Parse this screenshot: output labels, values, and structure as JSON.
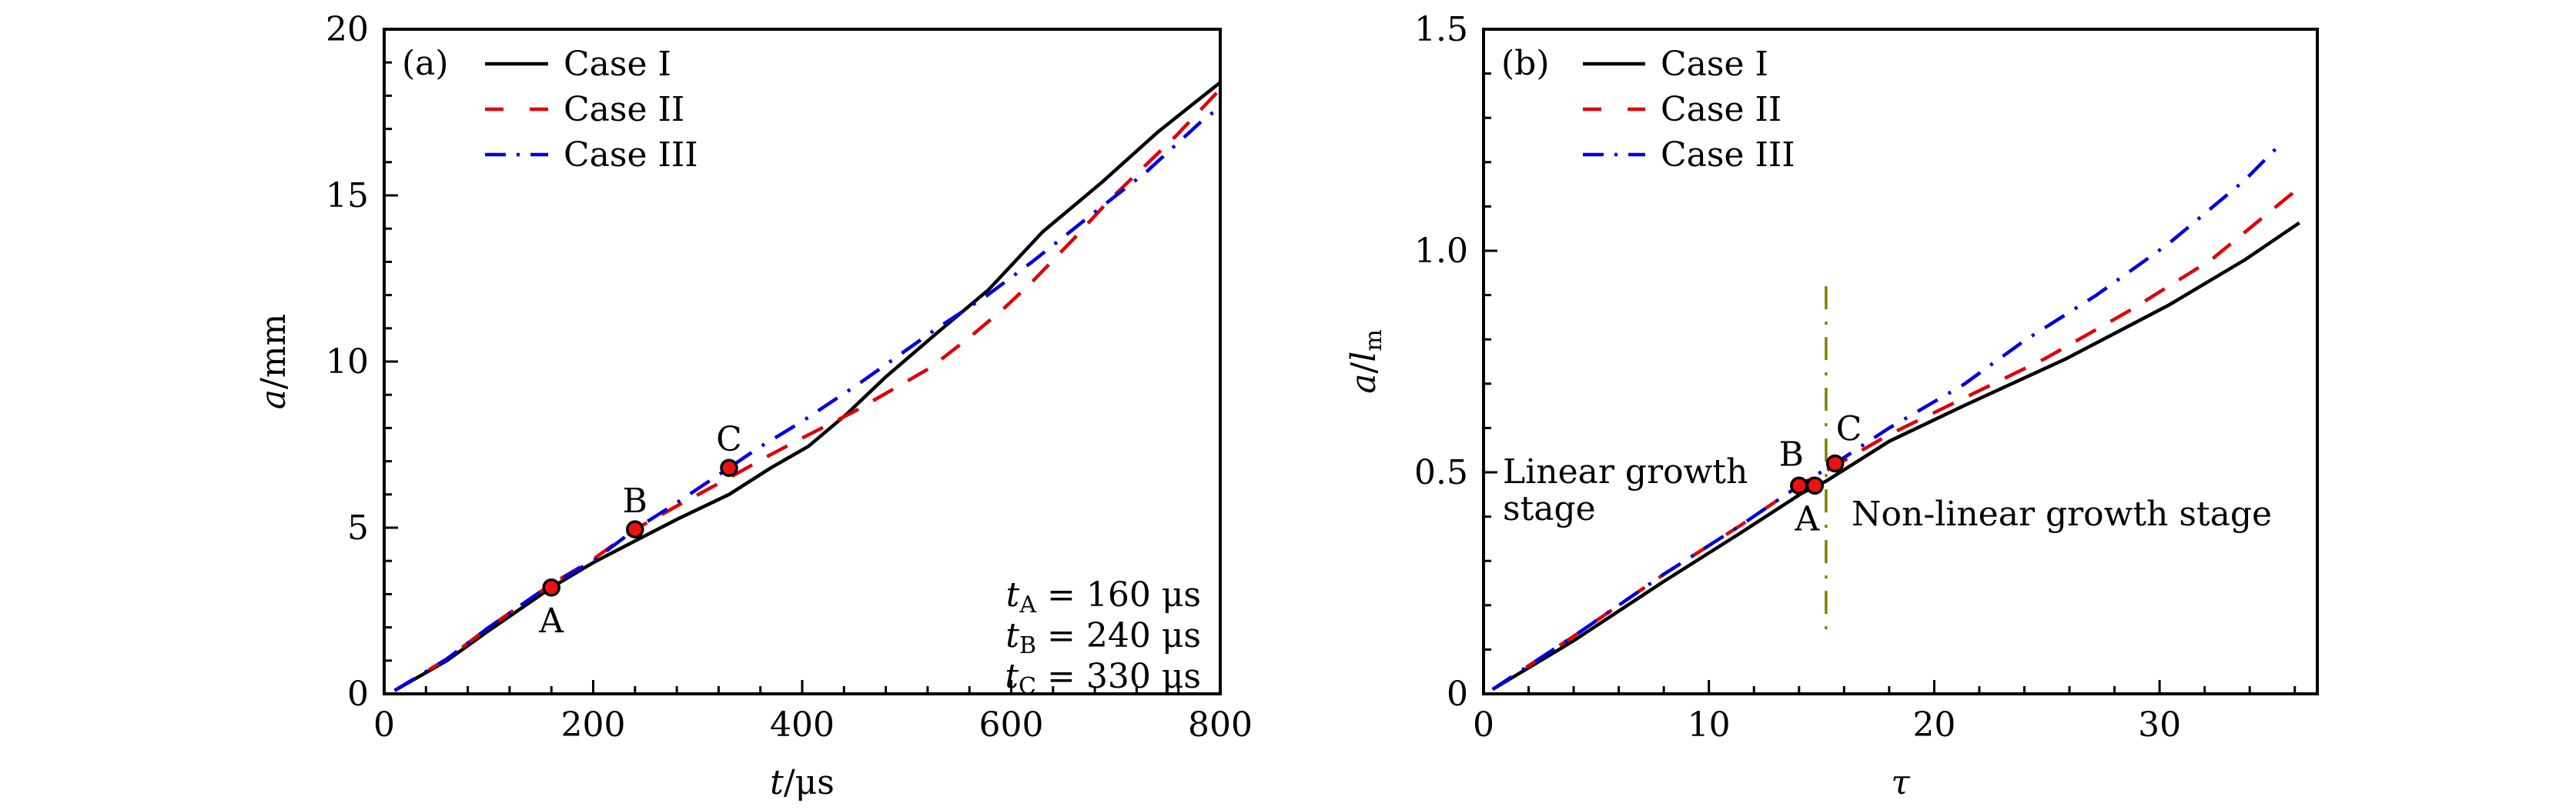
{
  "chart_data": [
    {
      "type": "line",
      "panel_label": "(a)",
      "title": "",
      "xlabel": "t/μs",
      "xlabel_var": "t",
      "xlabel_unit": "/μs",
      "ylabel": "a/mm",
      "ylabel_var": "a",
      "ylabel_unit": "/mm",
      "xlim": [
        0,
        800
      ],
      "ylim": [
        0,
        20
      ],
      "xticks": [
        0,
        200,
        400,
        600,
        800
      ],
      "xtick_labels": [
        "0",
        "200",
        "400",
        "600",
        "800"
      ],
      "x_minor_step": 40,
      "yticks": [
        0,
        5,
        10,
        15,
        20
      ],
      "ytick_labels": [
        "0",
        "5",
        "10",
        "15",
        "20"
      ],
      "y_minor_step": 1,
      "grid": false,
      "legend_position": "top-left",
      "series": [
        {
          "name": "Case I",
          "color": "#000000",
          "style": "solid",
          "x": [
            10,
            60,
            100,
            160,
            200,
            240,
            280,
            330,
            370,
            406,
            443,
            480,
            529,
            578,
            630,
            687,
            740,
            800
          ],
          "y": [
            0.1,
            1.0,
            1.9,
            3.2,
            3.95,
            4.6,
            5.25,
            6.0,
            6.8,
            7.45,
            8.43,
            9.54,
            10.86,
            12.15,
            13.9,
            15.4,
            16.9,
            18.4
          ]
        },
        {
          "name": "Case II",
          "color": "#e00000",
          "style": "dashed",
          "x": [
            10,
            60,
            100,
            160,
            200,
            240,
            280,
            330,
            367,
            400,
            450,
            522,
            559,
            593,
            620,
            660,
            694,
            758,
            800
          ],
          "y": [
            0.1,
            1.05,
            2.0,
            3.3,
            4.05,
            4.95,
            5.65,
            6.5,
            7.15,
            7.7,
            8.5,
            9.8,
            10.7,
            11.6,
            12.4,
            13.7,
            14.86,
            16.8,
            18.2
          ]
        },
        {
          "name": "Case III",
          "color": "#0000e0",
          "style": "dashdot",
          "x": [
            10,
            60,
            100,
            160,
            200,
            240,
            280,
            330,
            357,
            400,
            455,
            529,
            576,
            620,
            674,
            729,
            788,
            800
          ],
          "y": [
            0.1,
            1.05,
            2.0,
            3.3,
            4.0,
            4.95,
            5.75,
            6.8,
            7.38,
            8.2,
            9.35,
            11.0,
            11.97,
            13.0,
            14.35,
            15.7,
            17.4,
            17.6
          ]
        }
      ],
      "markers": [
        {
          "label": "A",
          "x": 160,
          "y": 3.2,
          "label_pos": "below"
        },
        {
          "label": "B",
          "x": 240,
          "y": 4.95,
          "label_pos": "above"
        },
        {
          "label": "C",
          "x": 330,
          "y": 6.8,
          "label_pos": "above"
        }
      ],
      "marker_color": "#ee1111",
      "annotations": [
        {
          "var": "t",
          "sub": "A",
          "text": " = 160 μs"
        },
        {
          "var": "t",
          "sub": "B",
          "text": " = 240 μs"
        },
        {
          "var": "t",
          "sub": "C",
          "text": " = 330 μs"
        }
      ]
    },
    {
      "type": "line",
      "panel_label": "(b)",
      "title": "",
      "xlabel": "τ",
      "xlabel_var": "τ",
      "xlabel_unit": "",
      "ylabel": "a/l_m",
      "ylabel_var": "a",
      "ylabel_unit": "/",
      "ylabel_var2": "l",
      "ylabel_sub": "m",
      "xlim": [
        0,
        37
      ],
      "ylim": [
        0,
        1.5
      ],
      "xticks": [
        0,
        10,
        20,
        30
      ],
      "xtick_labels": [
        "0",
        "10",
        "20",
        "30"
      ],
      "x_minor_step": 2,
      "yticks": [
        0,
        0.5,
        1.0,
        1.5
      ],
      "ytick_labels": [
        "0",
        "0.5",
        "1.0",
        "1.5"
      ],
      "y_minor_step": 0.1,
      "grid": false,
      "legend_position": "top-left",
      "series": [
        {
          "name": "Case I",
          "color": "#000000",
          "style": "solid",
          "x": [
            0.4,
            4,
            7.95,
            11.4,
            14.1,
            15.2,
            18,
            21.3,
            25.8,
            30.4,
            33.8,
            36.2
          ],
          "y": [
            0.01,
            0.12,
            0.252,
            0.363,
            0.452,
            0.48,
            0.57,
            0.65,
            0.755,
            0.877,
            0.98,
            1.063
          ]
        },
        {
          "name": "Case II",
          "color": "#e00000",
          "style": "dashed",
          "x": [
            0.4,
            4,
            8,
            11.4,
            14,
            15.6,
            18,
            21.3,
            24.9,
            28.7,
            32.3,
            35.9
          ],
          "y": [
            0.01,
            0.13,
            0.27,
            0.38,
            0.47,
            0.515,
            0.585,
            0.667,
            0.756,
            0.866,
            0.98,
            1.13
          ]
        },
        {
          "name": "Case III",
          "color": "#0000e0",
          "style": "dashdot",
          "x": [
            0.4,
            4,
            8,
            11.4,
            14,
            15.6,
            18,
            21.3,
            24,
            27.2,
            30.4,
            33.8,
            35.5
          ],
          "y": [
            0.01,
            0.13,
            0.27,
            0.38,
            0.47,
            0.52,
            0.6,
            0.698,
            0.797,
            0.9,
            1.016,
            1.16,
            1.248
          ]
        }
      ],
      "markers": [
        {
          "label": "B",
          "x": 14.0,
          "y": 0.47,
          "label_pos": "above"
        },
        {
          "label": "A",
          "x": 14.7,
          "y": 0.47,
          "label_pos": "below"
        },
        {
          "label": "C",
          "x": 15.6,
          "y": 0.52,
          "label_pos": "above"
        }
      ],
      "marker_color": "#ee1111",
      "vline": {
        "x": 15.2,
        "y_from": 0.13,
        "y_to": 0.92,
        "color": "#808000",
        "style": "dashdot"
      },
      "region_labels": [
        {
          "lines": [
            "Linear growth",
            "stage"
          ],
          "side": "left"
        },
        {
          "lines": [
            "Non-linear growth stage"
          ],
          "side": "right"
        }
      ]
    }
  ]
}
